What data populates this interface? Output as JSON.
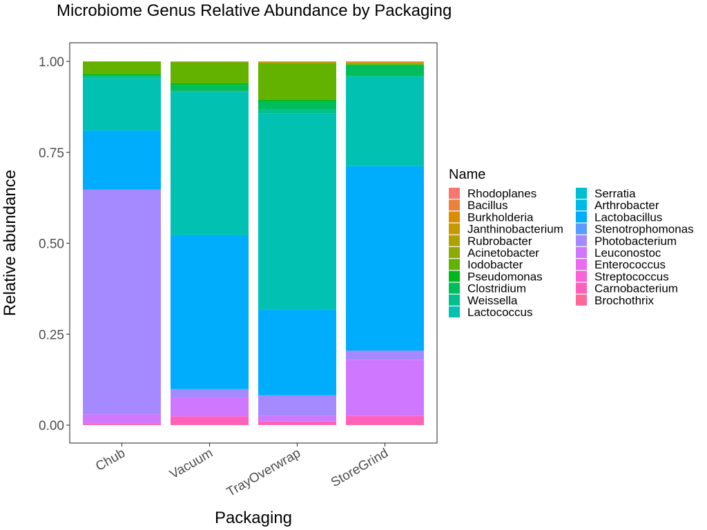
{
  "chart_data": {
    "type": "bar",
    "stacked": true,
    "title": "Microbiome Genus Relative Abundance by Packaging",
    "xlabel": "Packaging",
    "ylabel": "Relative abundance",
    "ylim": [
      0,
      1
    ],
    "yticks": [
      "0.00",
      "0.25",
      "0.50",
      "0.75",
      "1.00"
    ],
    "ytick_values": [
      0,
      0.25,
      0.5,
      0.75,
      1.0
    ],
    "categories": [
      "Chub",
      "Vacuum",
      "TrayOverwrap",
      "StoreGrind"
    ],
    "legend_title": "Name",
    "legend_position": "right",
    "grid": false,
    "series": [
      {
        "name": "Rhodoplanes",
        "color": "#F8766D",
        "values": [
          0.0,
          0.0,
          0.0,
          0.0
        ]
      },
      {
        "name": "Bacillus",
        "color": "#EC8239",
        "values": [
          0.0,
          0.001,
          0.001,
          0.002
        ]
      },
      {
        "name": "Burkholderia",
        "color": "#DB8E00",
        "values": [
          0.0,
          0.001,
          0.001,
          0.002
        ]
      },
      {
        "name": "Janthinobacterium",
        "color": "#C79800",
        "values": [
          0.0,
          0.0,
          0.002,
          0.001
        ]
      },
      {
        "name": "Rubrobacter",
        "color": "#AEA200",
        "values": [
          0.0,
          0.0,
          0.0,
          0.0
        ]
      },
      {
        "name": "Acinetobacter",
        "color": "#8FAA00",
        "values": [
          0.0,
          0.0,
          0.0,
          0.0
        ]
      },
      {
        "name": "Iodobacter",
        "color": "#64B200",
        "values": [
          0.035,
          0.058,
          0.101,
          0.004
        ]
      },
      {
        "name": "Pseudomonas",
        "color": "#00B81B",
        "values": [
          0.003,
          0.005,
          0.005,
          0.002
        ]
      },
      {
        "name": "Clostridium",
        "color": "#00BD5C",
        "values": [
          0.002,
          0.016,
          0.021,
          0.028
        ]
      },
      {
        "name": "Weissella",
        "color": "#00C08E",
        "values": [
          0.007,
          0.003,
          0.012,
          0.004
        ]
      },
      {
        "name": "Lactococcus",
        "color": "#00C1B2",
        "values": [
          0.143,
          0.393,
          0.54,
          0.245
        ]
      },
      {
        "name": "Serratia",
        "color": "#00BFD0",
        "values": [
          0.0,
          0.0,
          0.0,
          0.0
        ]
      },
      {
        "name": "Arthrobacter",
        "color": "#00BAE8",
        "values": [
          0.0,
          0.0,
          0.0,
          0.0
        ]
      },
      {
        "name": "Lactobacillus",
        "color": "#00ACFC",
        "values": [
          0.162,
          0.424,
          0.235,
          0.507
        ]
      },
      {
        "name": "Stenotrophomonas",
        "color": "#5A9DFF",
        "values": [
          0.0,
          0.0,
          0.0,
          0.0
        ]
      },
      {
        "name": "Photobacterium",
        "color": "#A58AFF",
        "values": [
          0.618,
          0.023,
          0.057,
          0.025
        ]
      },
      {
        "name": "Leuconostoc",
        "color": "#CF78FF",
        "values": [
          0.025,
          0.052,
          0.015,
          0.155
        ]
      },
      {
        "name": "Enterococcus",
        "color": "#EB6AF0",
        "values": [
          0.0,
          0.0,
          0.0,
          0.0
        ]
      },
      {
        "name": "Streptococcus",
        "color": "#FA63D7",
        "values": [
          0.0,
          0.0,
          0.0,
          0.0
        ]
      },
      {
        "name": "Carnobacterium",
        "color": "#FF61BA",
        "values": [
          0.004,
          0.022,
          0.009,
          0.022
        ]
      },
      {
        "name": "Brochothrix",
        "color": "#FF6899",
        "values": [
          0.001,
          0.002,
          0.001,
          0.003
        ]
      }
    ]
  }
}
